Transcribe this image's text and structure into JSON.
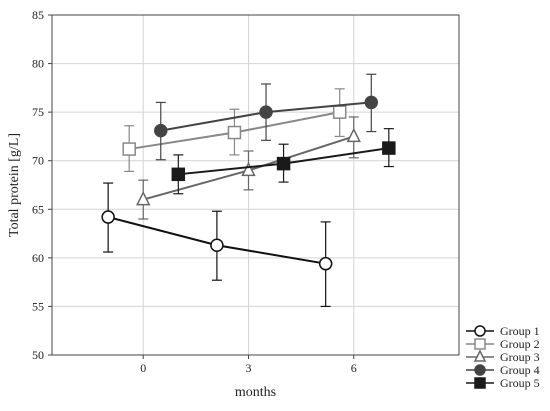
{
  "chart_data": {
    "type": "line",
    "title": "",
    "xlabel": "months",
    "ylabel": "Total protein [g/L]",
    "x_ticks": [
      0,
      3,
      6
    ],
    "x_tick_labels": [
      "0",
      "3",
      "6"
    ],
    "xlim": [
      -2.6,
      9
    ],
    "ylim": [
      50,
      85
    ],
    "y_ticks": [
      50,
      55,
      60,
      65,
      70,
      75,
      80,
      85
    ],
    "y_tick_labels": [
      "50",
      "55",
      "60",
      "65",
      "70",
      "75",
      "80",
      "85"
    ],
    "grid": true,
    "legend_position": "bottom-right outside",
    "series": [
      {
        "name": "Group 1",
        "marker": "circle-open",
        "color": "#111111",
        "x": [
          -1,
          2.1,
          5.2
        ],
        "y": [
          64.2,
          61.3,
          59.4
        ],
        "err_low": [
          60.6,
          57.7,
          55.0
        ],
        "err_high": [
          67.7,
          64.8,
          63.7
        ]
      },
      {
        "name": "Group 2",
        "marker": "square-open",
        "color": "#888888",
        "x": [
          -0.4,
          2.6,
          5.6
        ],
        "y": [
          71.2,
          72.9,
          75.0
        ],
        "err_low": [
          68.9,
          70.6,
          72.5
        ],
        "err_high": [
          73.6,
          75.3,
          77.4
        ]
      },
      {
        "name": "Group 3",
        "marker": "triangle-open",
        "color": "#666666",
        "x": [
          0,
          3,
          6
        ],
        "y": [
          66.0,
          69.0,
          72.5
        ],
        "err_low": [
          64.0,
          67.0,
          70.3
        ],
        "err_high": [
          68.0,
          71.0,
          74.5
        ]
      },
      {
        "name": "Group 4",
        "marker": "circle-filled",
        "color": "#444444",
        "x": [
          0.5,
          3.5,
          6.5
        ],
        "y": [
          73.1,
          75.0,
          76.0
        ],
        "err_low": [
          70.1,
          72.1,
          73.0
        ],
        "err_high": [
          76.0,
          77.9,
          78.9
        ]
      },
      {
        "name": "Group 5",
        "marker": "square-filled",
        "color": "#1a1a1a",
        "x": [
          1,
          4,
          7
        ],
        "y": [
          68.6,
          69.7,
          71.3
        ],
        "err_low": [
          66.6,
          67.8,
          69.4
        ],
        "err_high": [
          70.6,
          71.7,
          73.3
        ]
      }
    ]
  }
}
